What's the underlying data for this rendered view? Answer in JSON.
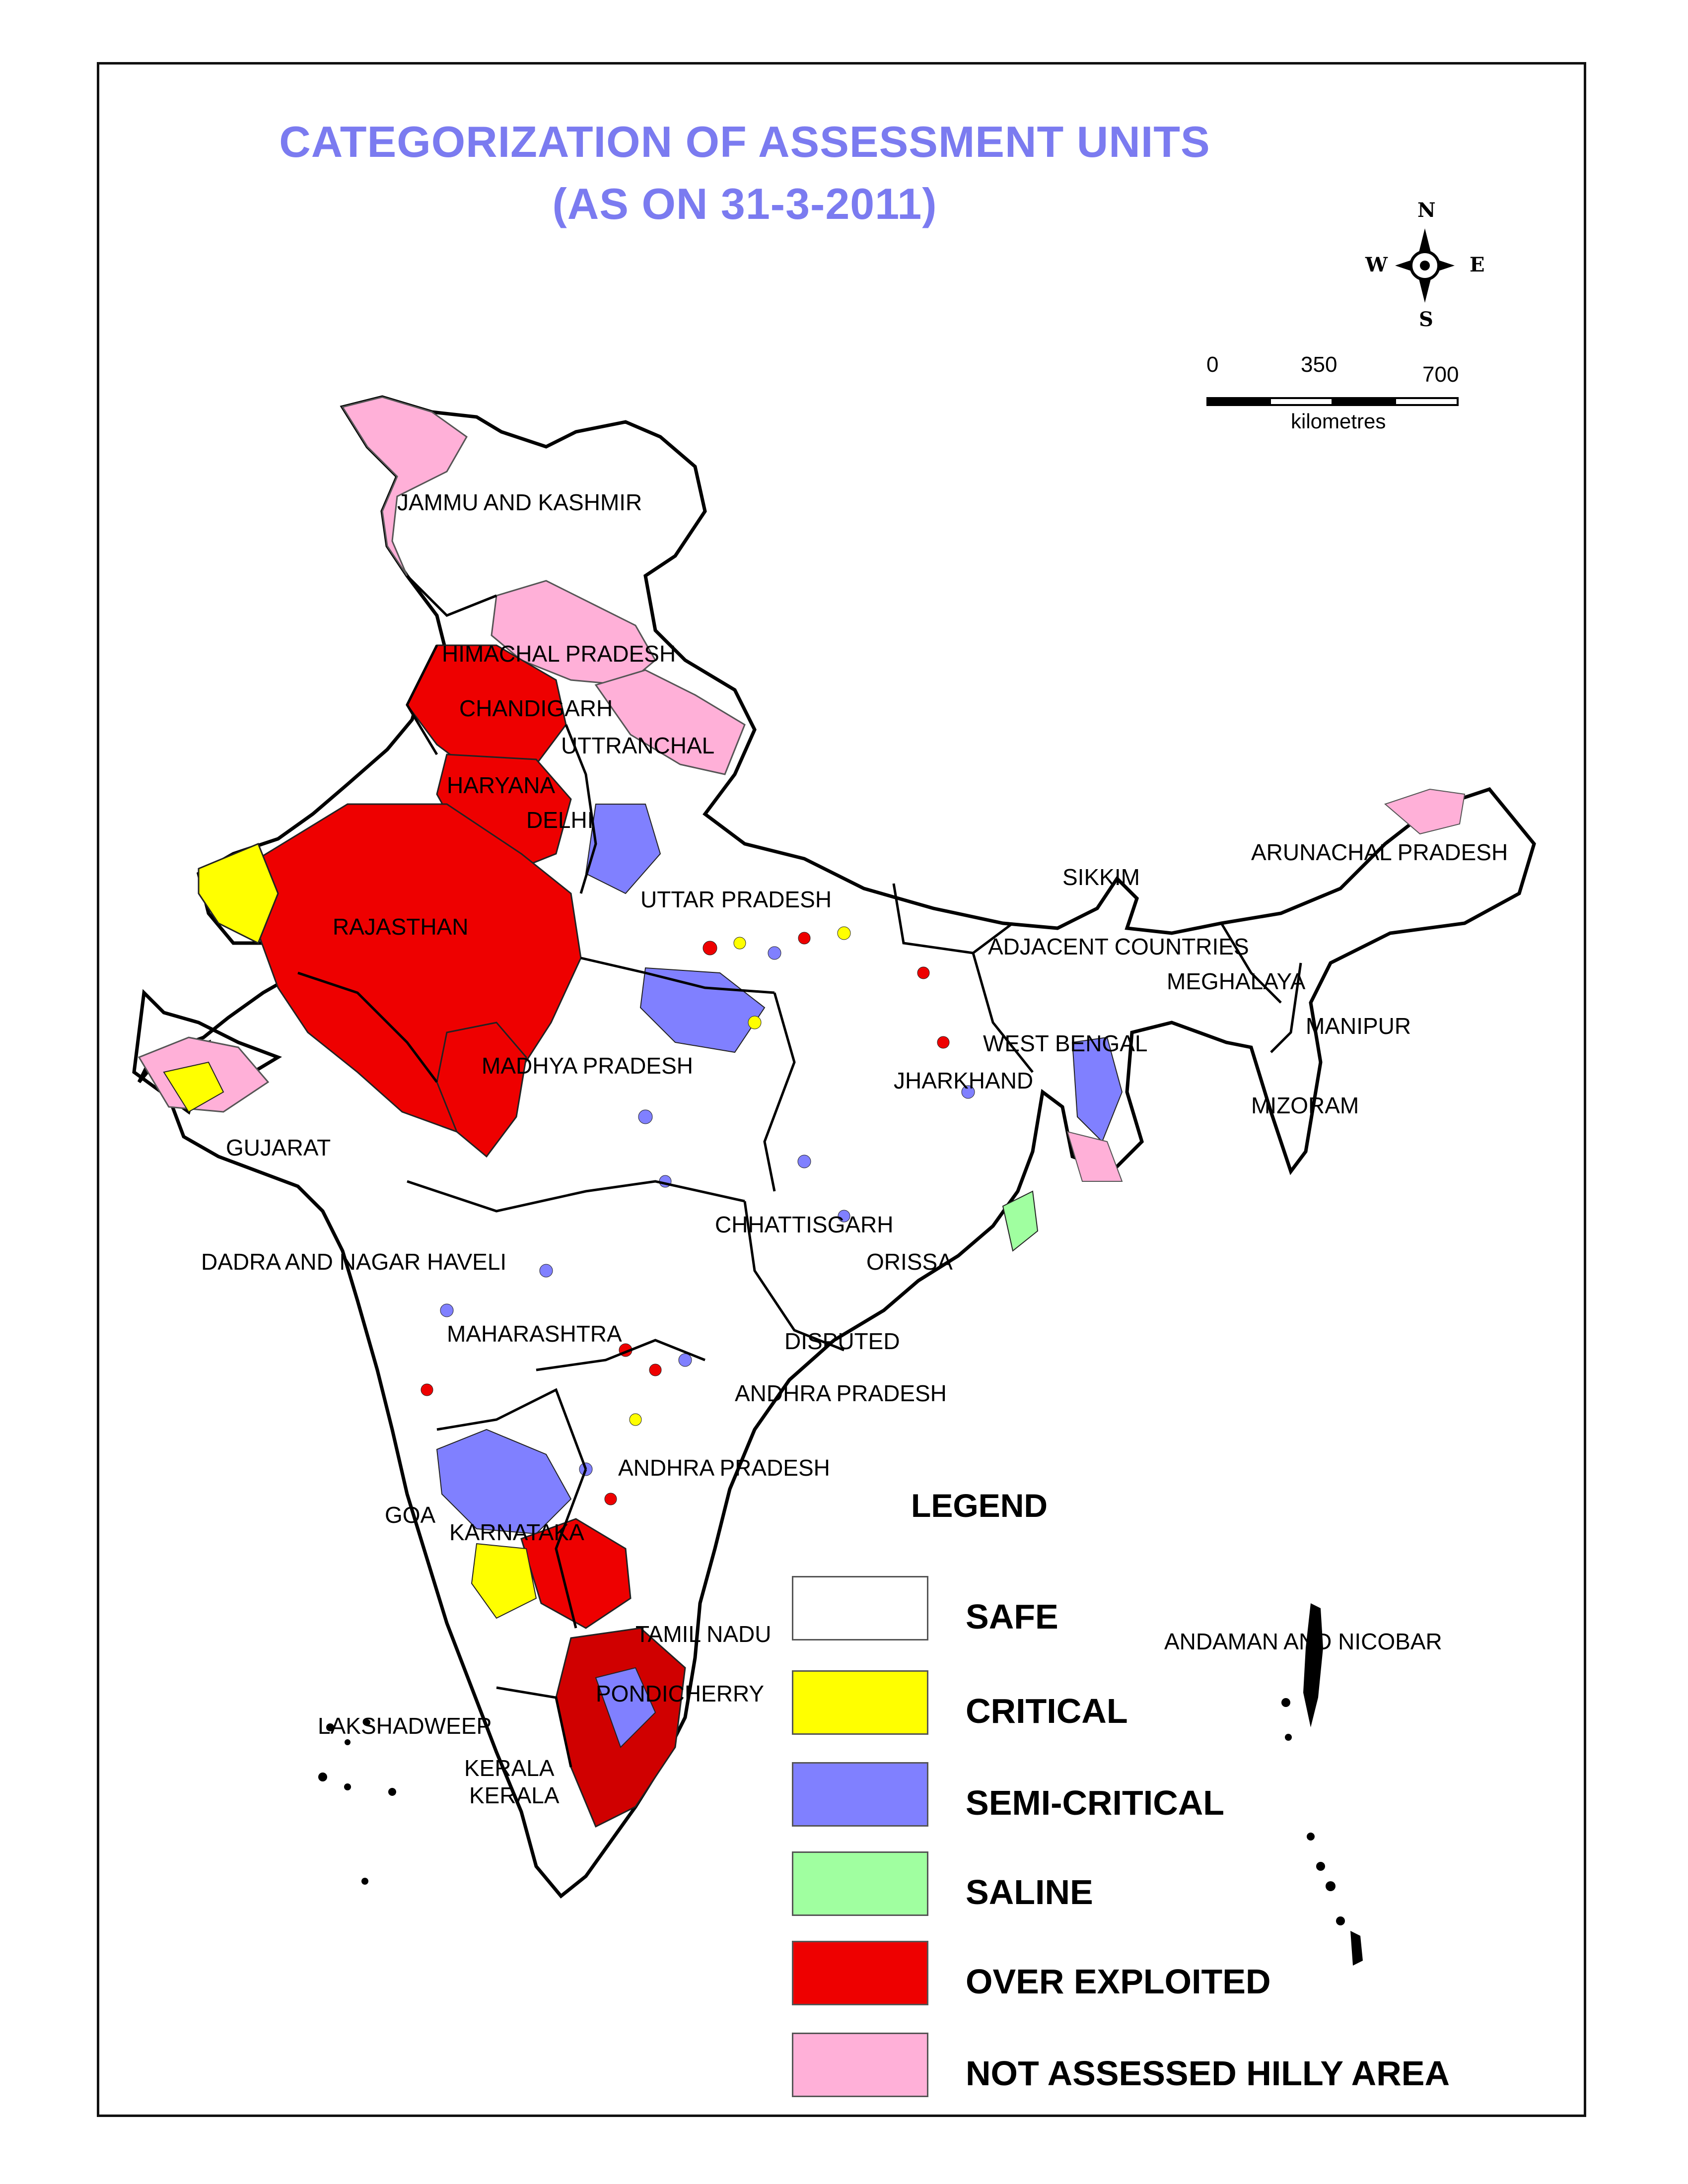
{
  "title": {
    "line1": "CATEGORIZATION OF ASSESSMENT UNITS",
    "line2": "(AS ON 31-3-2011)"
  },
  "compass": {
    "n": "N",
    "s": "S",
    "e": "E",
    "w": "W"
  },
  "scale": {
    "t0": "0",
    "t1": "350",
    "t2": "700",
    "unit": "kilometres"
  },
  "labels": {
    "jammu_kashmir": "JAMMU AND KASHMIR",
    "himachal": "HIMACHAL PRADESH",
    "chandigarh": "CHANDIGARH",
    "uttranchal": "UTTRANCHAL",
    "haryana": "HARYANA",
    "delhi": "DELHI",
    "rajasthan": "RAJASTHAN",
    "uttar_pradesh": "UTTAR PRADESH",
    "sikkim": "SIKKIM",
    "arunachal": "ARUNACHAL PRADESH",
    "adjacent": "ADJACENT COUNTRIES",
    "meghalaya": "MEGHALAYA",
    "manipur": "MANIPUR",
    "mizoram": "MIZORAM",
    "west_bengal": "WEST BENGAL",
    "jharkhand": "JHARKHAND",
    "madhya_pradesh": "MADHYA PRADESH",
    "gujarat": "GUJARAT",
    "chhattisgarh": "CHHATTISGARH",
    "orissa": "ORISSA",
    "dadra": "DADRA AND NAGAR HAVELI",
    "maharashtra": "MAHARASHTRA",
    "disputed": "DISPUTED",
    "andhra1": "ANDHRA PRADESH",
    "andhra2": "ANDHRA PRADESH",
    "goa": "GOA",
    "karnataka": "KARNATAKA",
    "tamil_nadu": "TAMIL NADU",
    "pondicherry": "PONDICHERRY",
    "lakshadweep": "LAKSHADWEEP",
    "kerala1": "KERALA",
    "kerala2": "KERALA",
    "andaman": "ANDAMAN AND NICOBAR"
  },
  "legend": {
    "title": "LEGEND",
    "items": [
      {
        "label": "SAFE",
        "color": "#ffffff"
      },
      {
        "label": "CRITICAL",
        "color": "#ffff00"
      },
      {
        "label": "SEMI-CRITICAL",
        "color": "#8080ff"
      },
      {
        "label": "SALINE",
        "color": "#a0ffa0"
      },
      {
        "label": "OVER EXPLOITED",
        "color": "#ee0000"
      },
      {
        "label": "NOT ASSESSED HILLY AREA",
        "color": "#ffb0d8"
      }
    ]
  }
}
